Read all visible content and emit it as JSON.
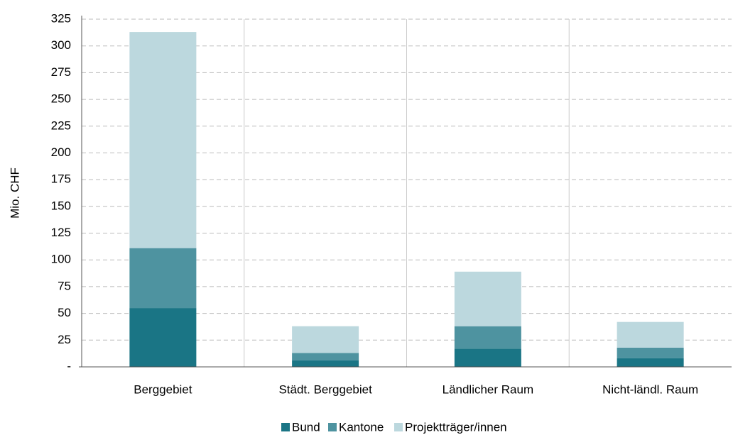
{
  "chart_data": {
    "type": "stacked_bar",
    "y_label": "Mio. CHF",
    "categories": [
      "Berggebiet",
      "Städt. Berggebiet",
      "Ländlicher Raum",
      "Nicht-ländl. Raum"
    ],
    "series": [
      {
        "name": "Bund",
        "color": "#1a7585",
        "values": [
          55,
          6,
          17,
          8
        ]
      },
      {
        "name": "Kantone",
        "color": "#4e93a0",
        "values": [
          56,
          7,
          21,
          10
        ]
      },
      {
        "name": "Projektträger/innen",
        "color": "#bcd8de",
        "values": [
          202,
          25,
          51,
          24
        ]
      }
    ],
    "ylim": [
      0,
      325
    ],
    "yticks": [
      {
        "value": 0,
        "label": "-"
      },
      25,
      50,
      75,
      100,
      125,
      150,
      175,
      200,
      225,
      250,
      275,
      300,
      325
    ],
    "grid": true,
    "legend": "bottom"
  }
}
